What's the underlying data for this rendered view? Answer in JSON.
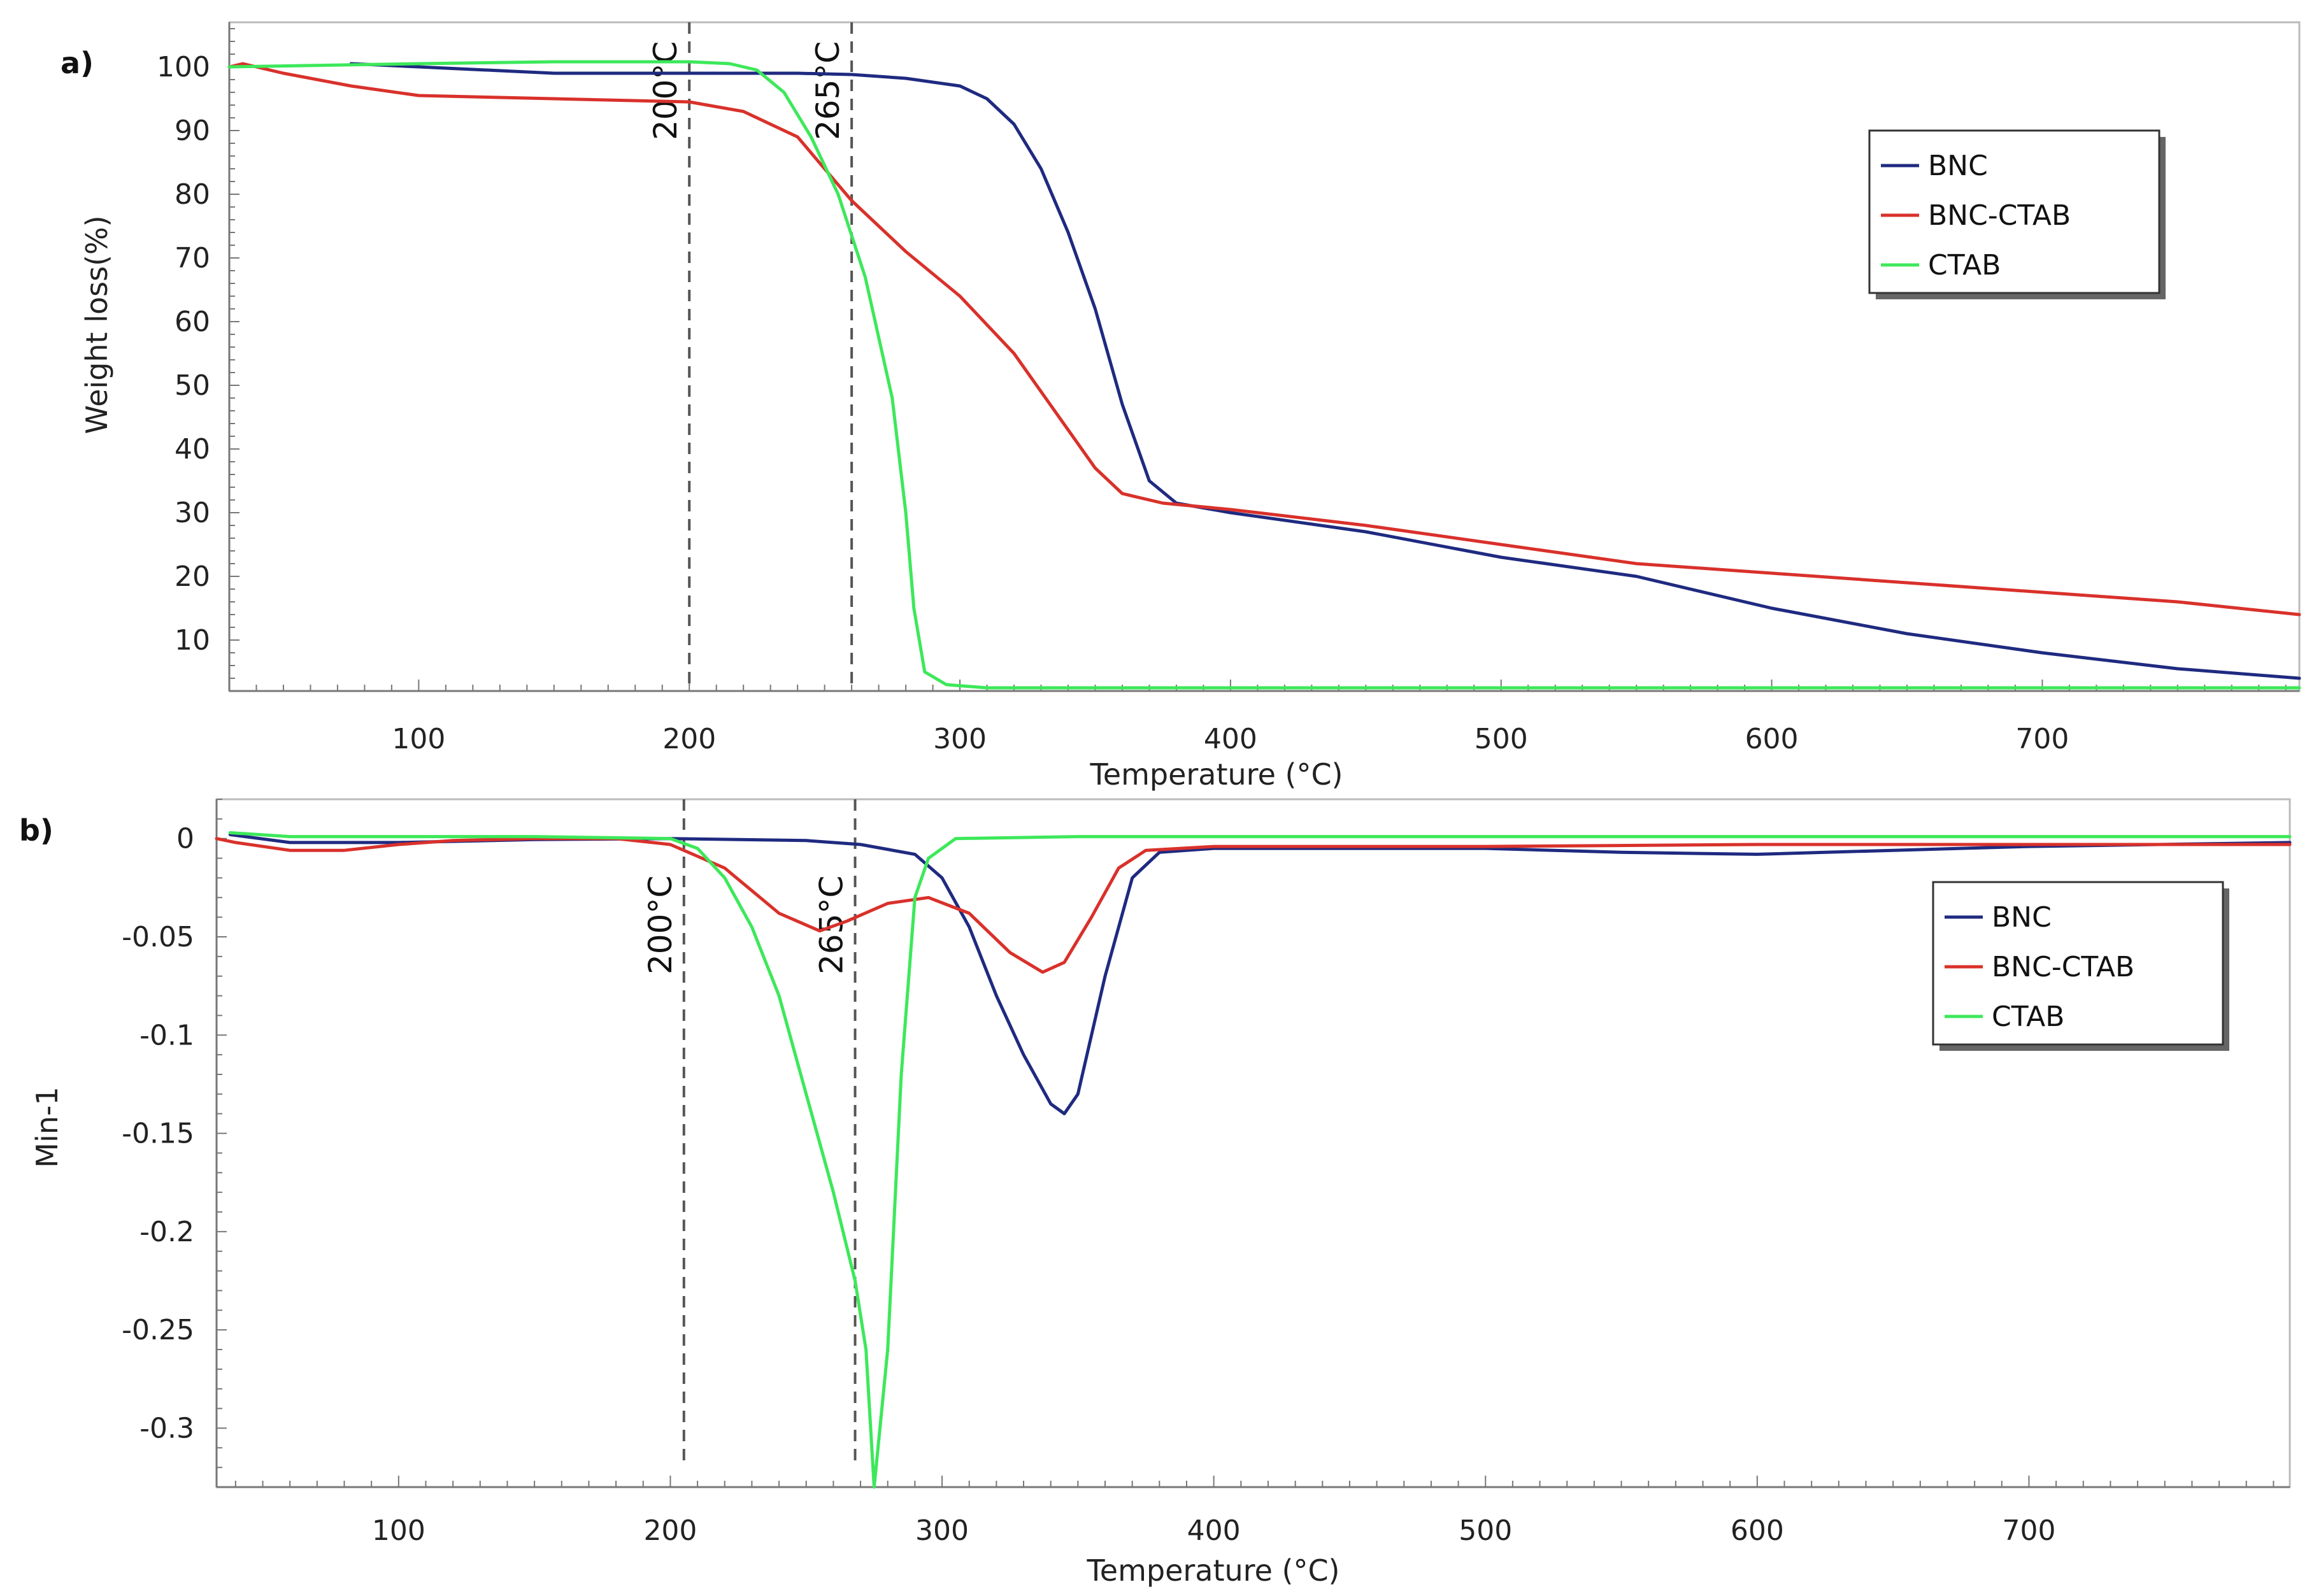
{
  "colors": {
    "BNC": "#1f2a80",
    "BNC-CTAB": "#d9312b",
    "CTAB": "#3de85a",
    "axis": "#999999",
    "guide": "#555555"
  },
  "chart_data": [
    {
      "panel": "a)",
      "type": "line",
      "xlabel": "Temperature (°C)",
      "ylabel": "Weight loss(%)",
      "xlim": [
        30,
        795
      ],
      "ylim": [
        2,
        107
      ],
      "xticks": [
        100,
        200,
        300,
        400,
        500,
        600,
        700
      ],
      "yticks": [
        10,
        20,
        30,
        40,
        50,
        60,
        70,
        80,
        90,
        100
      ],
      "vlines": [
        {
          "x": 200,
          "label": "200°C"
        },
        {
          "x": 260,
          "label": "265°C"
        }
      ],
      "legend": [
        "BNC",
        "BNC-CTAB",
        "CTAB"
      ],
      "legend_position": "top-right",
      "series": [
        {
          "name": "BNC",
          "points": [
            [
              75,
              100.5
            ],
            [
              100,
              100
            ],
            [
              150,
              99
            ],
            [
              200,
              99
            ],
            [
              240,
              99
            ],
            [
              260,
              98.8
            ],
            [
              280,
              98.2
            ],
            [
              300,
              97
            ],
            [
              310,
              95
            ],
            [
              320,
              91
            ],
            [
              330,
              84
            ],
            [
              340,
              74
            ],
            [
              350,
              62
            ],
            [
              360,
              47
            ],
            [
              370,
              35
            ],
            [
              380,
              31.5
            ],
            [
              400,
              30
            ],
            [
              450,
              27
            ],
            [
              500,
              23
            ],
            [
              550,
              20
            ],
            [
              600,
              15
            ],
            [
              650,
              11
            ],
            [
              700,
              8
            ],
            [
              750,
              5.5
            ],
            [
              795,
              4
            ]
          ]
        },
        {
          "name": "BNC-CTAB",
          "points": [
            [
              30,
              100
            ],
            [
              35,
              100.5
            ],
            [
              50,
              99
            ],
            [
              75,
              97
            ],
            [
              100,
              95.5
            ],
            [
              150,
              95
            ],
            [
              200,
              94.5
            ],
            [
              220,
              93
            ],
            [
              240,
              89
            ],
            [
              250,
              84
            ],
            [
              260,
              79
            ],
            [
              280,
              71
            ],
            [
              300,
              64
            ],
            [
              320,
              55
            ],
            [
              340,
              43
            ],
            [
              350,
              37
            ],
            [
              360,
              33
            ],
            [
              375,
              31.5
            ],
            [
              400,
              30.5
            ],
            [
              450,
              28
            ],
            [
              500,
              25
            ],
            [
              550,
              22
            ],
            [
              600,
              20.5
            ],
            [
              650,
              19
            ],
            [
              700,
              17.5
            ],
            [
              750,
              16
            ],
            [
              795,
              14
            ]
          ]
        },
        {
          "name": "CTAB",
          "points": [
            [
              30,
              100
            ],
            [
              100,
              100.5
            ],
            [
              150,
              100.8
            ],
            [
              200,
              100.8
            ],
            [
              215,
              100.5
            ],
            [
              225,
              99.5
            ],
            [
              235,
              96
            ],
            [
              245,
              89
            ],
            [
              255,
              80
            ],
            [
              265,
              67
            ],
            [
              275,
              48
            ],
            [
              280,
              30
            ],
            [
              283,
              15
            ],
            [
              287,
              5
            ],
            [
              295,
              3
            ],
            [
              310,
              2.5
            ],
            [
              400,
              2.5
            ],
            [
              500,
              2.5
            ],
            [
              600,
              2.5
            ],
            [
              700,
              2.5
            ],
            [
              795,
              2.5
            ]
          ]
        }
      ]
    },
    {
      "panel": "b)",
      "type": "line",
      "xlabel": "Temperature (°C)",
      "ylabel": "Min-1",
      "xlim": [
        33,
        796
      ],
      "ylim": [
        -0.33,
        0.02
      ],
      "xticks": [
        100,
        200,
        300,
        400,
        500,
        600,
        700
      ],
      "yticks": [
        0,
        -0.05,
        -0.1,
        -0.15,
        -0.2,
        -0.25,
        -0.3
      ],
      "ytick_labels": [
        "0",
        "-0.05",
        "-0.1",
        "-0.15",
        "-0.2",
        "-0.25",
        "-0.3"
      ],
      "vlines": [
        {
          "x": 205,
          "label": "200°C"
        },
        {
          "x": 268,
          "label": "265°C"
        }
      ],
      "legend": [
        "BNC",
        "BNC-CTAB",
        "CTAB"
      ],
      "legend_position": "right",
      "series": [
        {
          "name": "BNC",
          "points": [
            [
              38,
              0.002
            ],
            [
              60,
              -0.002
            ],
            [
              100,
              -0.002
            ],
            [
              150,
              -0.0005
            ],
            [
              200,
              0
            ],
            [
              250,
              -0.001
            ],
            [
              270,
              -0.003
            ],
            [
              290,
              -0.008
            ],
            [
              300,
              -0.02
            ],
            [
              310,
              -0.045
            ],
            [
              320,
              -0.08
            ],
            [
              330,
              -0.11
            ],
            [
              340,
              -0.135
            ],
            [
              345,
              -0.14
            ],
            [
              350,
              -0.13
            ],
            [
              360,
              -0.07
            ],
            [
              370,
              -0.02
            ],
            [
              380,
              -0.007
            ],
            [
              400,
              -0.005
            ],
            [
              500,
              -0.005
            ],
            [
              550,
              -0.007
            ],
            [
              600,
              -0.008
            ],
            [
              650,
              -0.006
            ],
            [
              700,
              -0.004
            ],
            [
              796,
              -0.002
            ]
          ]
        },
        {
          "name": "BNC-CTAB",
          "points": [
            [
              33,
              0
            ],
            [
              40,
              -0.002
            ],
            [
              60,
              -0.006
            ],
            [
              80,
              -0.006
            ],
            [
              100,
              -0.003
            ],
            [
              120,
              -0.001
            ],
            [
              150,
              0
            ],
            [
              180,
              0
            ],
            [
              200,
              -0.003
            ],
            [
              220,
              -0.015
            ],
            [
              240,
              -0.038
            ],
            [
              255,
              -0.047
            ],
            [
              265,
              -0.042
            ],
            [
              280,
              -0.033
            ],
            [
              295,
              -0.03
            ],
            [
              310,
              -0.038
            ],
            [
              325,
              -0.058
            ],
            [
              337,
              -0.068
            ],
            [
              345,
              -0.063
            ],
            [
              355,
              -0.04
            ],
            [
              365,
              -0.015
            ],
            [
              375,
              -0.006
            ],
            [
              400,
              -0.004
            ],
            [
              500,
              -0.004
            ],
            [
              600,
              -0.003
            ],
            [
              700,
              -0.003
            ],
            [
              796,
              -0.003
            ]
          ]
        },
        {
          "name": "CTAB",
          "points": [
            [
              38,
              0.003
            ],
            [
              60,
              0.001
            ],
            [
              100,
              0.001
            ],
            [
              150,
              0.001
            ],
            [
              200,
              0
            ],
            [
              210,
              -0.005
            ],
            [
              220,
              -0.02
            ],
            [
              230,
              -0.045
            ],
            [
              240,
              -0.08
            ],
            [
              250,
              -0.13
            ],
            [
              260,
              -0.18
            ],
            [
              268,
              -0.225
            ],
            [
              272,
              -0.26
            ],
            [
              275,
              -0.33
            ],
            [
              280,
              -0.26
            ],
            [
              285,
              -0.12
            ],
            [
              290,
              -0.03
            ],
            [
              295,
              -0.01
            ],
            [
              305,
              0
            ],
            [
              350,
              0.001
            ],
            [
              500,
              0.001
            ],
            [
              600,
              0.001
            ],
            [
              700,
              0.001
            ],
            [
              796,
              0.001
            ]
          ]
        }
      ]
    }
  ]
}
